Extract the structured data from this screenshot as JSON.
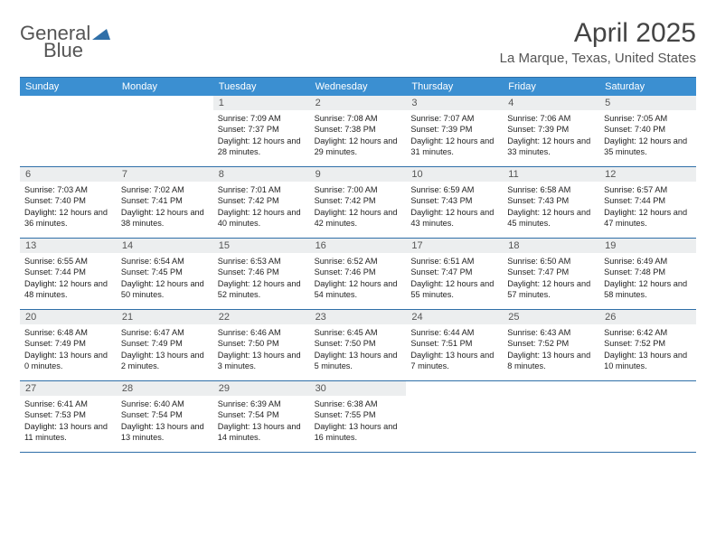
{
  "logo": {
    "text1": "General",
    "text2": "Blue",
    "tri_color": "#2f6fa8"
  },
  "title": "April 2025",
  "subtitle": "La Marque, Texas, United States",
  "colors": {
    "header_bar": "#3b8fd1",
    "header_text": "#ffffff",
    "daynum_bg": "#eceeef",
    "daynum_text": "#555555",
    "border": "#2f6fa8",
    "body_text": "#222222"
  },
  "days_of_week": [
    "Sunday",
    "Monday",
    "Tuesday",
    "Wednesday",
    "Thursday",
    "Friday",
    "Saturday"
  ],
  "weeks": [
    [
      null,
      null,
      {
        "n": "1",
        "sunrise": "7:09 AM",
        "sunset": "7:37 PM",
        "dl": "12 hours and 28 minutes."
      },
      {
        "n": "2",
        "sunrise": "7:08 AM",
        "sunset": "7:38 PM",
        "dl": "12 hours and 29 minutes."
      },
      {
        "n": "3",
        "sunrise": "7:07 AM",
        "sunset": "7:39 PM",
        "dl": "12 hours and 31 minutes."
      },
      {
        "n": "4",
        "sunrise": "7:06 AM",
        "sunset": "7:39 PM",
        "dl": "12 hours and 33 minutes."
      },
      {
        "n": "5",
        "sunrise": "7:05 AM",
        "sunset": "7:40 PM",
        "dl": "12 hours and 35 minutes."
      }
    ],
    [
      {
        "n": "6",
        "sunrise": "7:03 AM",
        "sunset": "7:40 PM",
        "dl": "12 hours and 36 minutes."
      },
      {
        "n": "7",
        "sunrise": "7:02 AM",
        "sunset": "7:41 PM",
        "dl": "12 hours and 38 minutes."
      },
      {
        "n": "8",
        "sunrise": "7:01 AM",
        "sunset": "7:42 PM",
        "dl": "12 hours and 40 minutes."
      },
      {
        "n": "9",
        "sunrise": "7:00 AM",
        "sunset": "7:42 PM",
        "dl": "12 hours and 42 minutes."
      },
      {
        "n": "10",
        "sunrise": "6:59 AM",
        "sunset": "7:43 PM",
        "dl": "12 hours and 43 minutes."
      },
      {
        "n": "11",
        "sunrise": "6:58 AM",
        "sunset": "7:43 PM",
        "dl": "12 hours and 45 minutes."
      },
      {
        "n": "12",
        "sunrise": "6:57 AM",
        "sunset": "7:44 PM",
        "dl": "12 hours and 47 minutes."
      }
    ],
    [
      {
        "n": "13",
        "sunrise": "6:55 AM",
        "sunset": "7:44 PM",
        "dl": "12 hours and 48 minutes."
      },
      {
        "n": "14",
        "sunrise": "6:54 AM",
        "sunset": "7:45 PM",
        "dl": "12 hours and 50 minutes."
      },
      {
        "n": "15",
        "sunrise": "6:53 AM",
        "sunset": "7:46 PM",
        "dl": "12 hours and 52 minutes."
      },
      {
        "n": "16",
        "sunrise": "6:52 AM",
        "sunset": "7:46 PM",
        "dl": "12 hours and 54 minutes."
      },
      {
        "n": "17",
        "sunrise": "6:51 AM",
        "sunset": "7:47 PM",
        "dl": "12 hours and 55 minutes."
      },
      {
        "n": "18",
        "sunrise": "6:50 AM",
        "sunset": "7:47 PM",
        "dl": "12 hours and 57 minutes."
      },
      {
        "n": "19",
        "sunrise": "6:49 AM",
        "sunset": "7:48 PM",
        "dl": "12 hours and 58 minutes."
      }
    ],
    [
      {
        "n": "20",
        "sunrise": "6:48 AM",
        "sunset": "7:49 PM",
        "dl": "13 hours and 0 minutes."
      },
      {
        "n": "21",
        "sunrise": "6:47 AM",
        "sunset": "7:49 PM",
        "dl": "13 hours and 2 minutes."
      },
      {
        "n": "22",
        "sunrise": "6:46 AM",
        "sunset": "7:50 PM",
        "dl": "13 hours and 3 minutes."
      },
      {
        "n": "23",
        "sunrise": "6:45 AM",
        "sunset": "7:50 PM",
        "dl": "13 hours and 5 minutes."
      },
      {
        "n": "24",
        "sunrise": "6:44 AM",
        "sunset": "7:51 PM",
        "dl": "13 hours and 7 minutes."
      },
      {
        "n": "25",
        "sunrise": "6:43 AM",
        "sunset": "7:52 PM",
        "dl": "13 hours and 8 minutes."
      },
      {
        "n": "26",
        "sunrise": "6:42 AM",
        "sunset": "7:52 PM",
        "dl": "13 hours and 10 minutes."
      }
    ],
    [
      {
        "n": "27",
        "sunrise": "6:41 AM",
        "sunset": "7:53 PM",
        "dl": "13 hours and 11 minutes."
      },
      {
        "n": "28",
        "sunrise": "6:40 AM",
        "sunset": "7:54 PM",
        "dl": "13 hours and 13 minutes."
      },
      {
        "n": "29",
        "sunrise": "6:39 AM",
        "sunset": "7:54 PM",
        "dl": "13 hours and 14 minutes."
      },
      {
        "n": "30",
        "sunrise": "6:38 AM",
        "sunset": "7:55 PM",
        "dl": "13 hours and 16 minutes."
      },
      null,
      null,
      null
    ]
  ],
  "labels": {
    "sunrise": "Sunrise:",
    "sunset": "Sunset:",
    "daylight": "Daylight:"
  }
}
